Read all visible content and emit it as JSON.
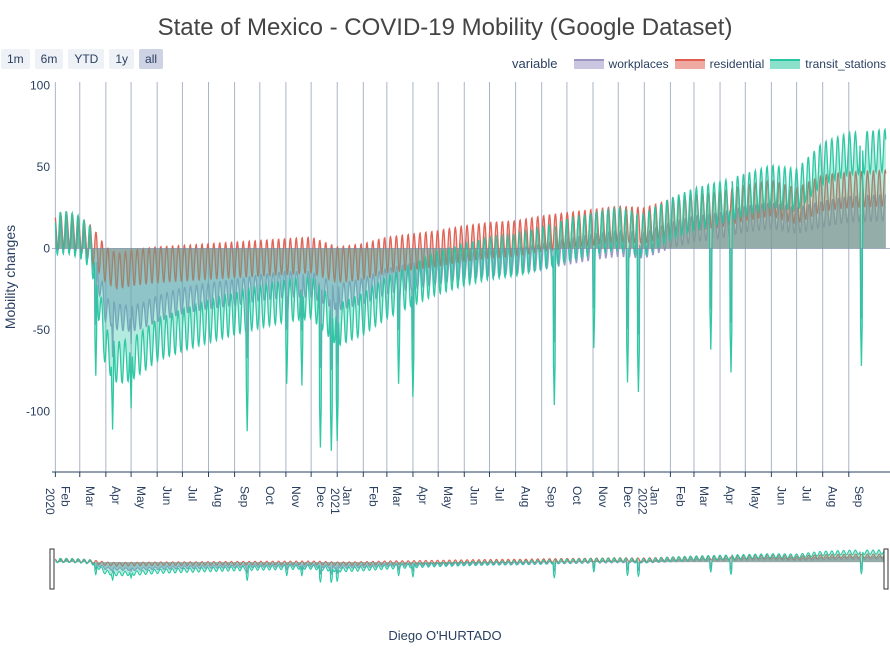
{
  "title": "State of Mexico - COVID-19 Mobility (Google Dataset)",
  "range_buttons": [
    "1m",
    "6m",
    "YTD",
    "1y",
    "all"
  ],
  "active_range": "all",
  "legend": {
    "title": "variable",
    "items": [
      {
        "name": "workplaces",
        "color": "#9b95c4"
      },
      {
        "name": "residential",
        "color": "#e05d4f"
      },
      {
        "name": "transit_stations",
        "color": "#26c6a0"
      }
    ]
  },
  "credit": "Diego O'HURTADO",
  "chart_data": {
    "type": "area",
    "title": "State of Mexico - COVID-19 Mobility (Google Dataset)",
    "xlabel": "",
    "ylabel": "Mobility changes",
    "ylim": [
      -137,
      102
    ],
    "yticks": [
      100,
      50,
      0,
      -50,
      -100
    ],
    "xlim": [
      "2020-01-28",
      "2022-10-20"
    ],
    "xticks": [
      {
        "label": "Feb",
        "date": "2020-02-01"
      },
      {
        "label": "Mar",
        "date": "2020-03-01"
      },
      {
        "label": "Apr",
        "date": "2020-04-01"
      },
      {
        "label": "May",
        "date": "2020-05-01"
      },
      {
        "label": "Jun",
        "date": "2020-06-01"
      },
      {
        "label": "Jul",
        "date": "2020-07-01"
      },
      {
        "label": "Aug",
        "date": "2020-08-01"
      },
      {
        "label": "Sep",
        "date": "2020-09-01"
      },
      {
        "label": "Oct",
        "date": "2020-10-01"
      },
      {
        "label": "Nov",
        "date": "2020-11-01"
      },
      {
        "label": "Dec",
        "date": "2020-12-01"
      },
      {
        "label": "Jan",
        "date": "2021-01-01"
      },
      {
        "label": "Feb",
        "date": "2021-02-01"
      },
      {
        "label": "Mar",
        "date": "2021-03-01"
      },
      {
        "label": "Apr",
        "date": "2021-04-01"
      },
      {
        "label": "May",
        "date": "2021-05-01"
      },
      {
        "label": "Jun",
        "date": "2021-06-01"
      },
      {
        "label": "Jul",
        "date": "2021-07-01"
      },
      {
        "label": "Aug",
        "date": "2021-08-01"
      },
      {
        "label": "Sep",
        "date": "2021-09-01"
      },
      {
        "label": "Oct",
        "date": "2021-10-01"
      },
      {
        "label": "Nov",
        "date": "2021-11-01"
      },
      {
        "label": "Dec",
        "date": "2021-12-01"
      },
      {
        "label": "Jan",
        "date": "2022-01-01"
      },
      {
        "label": "Feb",
        "date": "2022-02-01"
      },
      {
        "label": "Mar",
        "date": "2022-03-01"
      },
      {
        "label": "Apr",
        "date": "2022-04-01"
      },
      {
        "label": "May",
        "date": "2022-05-01"
      },
      {
        "label": "Jun",
        "date": "2022-06-01"
      },
      {
        "label": "Jul",
        "date": "2022-07-01"
      },
      {
        "label": "Aug",
        "date": "2022-08-01"
      },
      {
        "label": "Sep",
        "date": "2022-09-01"
      }
    ],
    "year_labels": [
      {
        "label": "2020",
        "date": "2020-01-28"
      },
      {
        "label": "2021",
        "date": "2021-01-01"
      },
      {
        "label": "2022",
        "date": "2022-01-01"
      }
    ],
    "series": [
      {
        "name": "workplaces",
        "color": "#9b95c4",
        "points": [
          [
            "2020-02-01",
            7
          ],
          [
            "2020-02-15",
            8
          ],
          [
            "2020-03-01",
            6
          ],
          [
            "2020-03-15",
            0
          ],
          [
            "2020-04-01",
            -38
          ],
          [
            "2020-04-15",
            -42
          ],
          [
            "2020-05-01",
            -43
          ],
          [
            "2020-05-15",
            -41
          ],
          [
            "2020-06-01",
            -37
          ],
          [
            "2020-07-01",
            -32
          ],
          [
            "2020-08-01",
            -29
          ],
          [
            "2020-09-01",
            -27
          ],
          [
            "2020-10-01",
            -24
          ],
          [
            "2020-11-01",
            -22
          ],
          [
            "2020-12-01",
            -22
          ],
          [
            "2021-01-01",
            -30
          ],
          [
            "2021-02-01",
            -26
          ],
          [
            "2021-03-01",
            -20
          ],
          [
            "2021-04-01",
            -17
          ],
          [
            "2021-05-01",
            -14
          ],
          [
            "2021-06-01",
            -11
          ],
          [
            "2021-07-01",
            -9
          ],
          [
            "2021-08-01",
            -8
          ],
          [
            "2021-09-01",
            -5
          ],
          [
            "2021-10-01",
            -2
          ],
          [
            "2021-11-01",
            1
          ],
          [
            "2021-12-01",
            3
          ],
          [
            "2022-01-01",
            2
          ],
          [
            "2022-02-01",
            8
          ],
          [
            "2022-03-01",
            12
          ],
          [
            "2022-04-01",
            14
          ],
          [
            "2022-05-01",
            18
          ],
          [
            "2022-06-01",
            20
          ],
          [
            "2022-07-01",
            17
          ],
          [
            "2022-08-01",
            21
          ],
          [
            "2022-09-01",
            24
          ],
          [
            "2022-10-15",
            25
          ]
        ]
      },
      {
        "name": "residential",
        "color": "#e05d4f",
        "points": [
          [
            "2020-02-01",
            10
          ],
          [
            "2020-02-15",
            11
          ],
          [
            "2020-03-01",
            8
          ],
          [
            "2020-03-15",
            3
          ],
          [
            "2020-04-01",
            -10
          ],
          [
            "2020-04-15",
            -14
          ],
          [
            "2020-05-01",
            -12
          ],
          [
            "2020-05-15",
            -11
          ],
          [
            "2020-06-01",
            -10
          ],
          [
            "2020-07-01",
            -9
          ],
          [
            "2020-08-01",
            -8
          ],
          [
            "2020-09-01",
            -7
          ],
          [
            "2020-10-01",
            -6
          ],
          [
            "2020-11-01",
            -5
          ],
          [
            "2020-12-01",
            -4
          ],
          [
            "2021-01-01",
            -10
          ],
          [
            "2021-02-01",
            -8
          ],
          [
            "2021-03-01",
            -4
          ],
          [
            "2021-04-01",
            -2
          ],
          [
            "2021-05-01",
            0
          ],
          [
            "2021-06-01",
            3
          ],
          [
            "2021-07-01",
            5
          ],
          [
            "2021-08-01",
            6
          ],
          [
            "2021-09-01",
            9
          ],
          [
            "2021-10-01",
            11
          ],
          [
            "2021-11-01",
            13
          ],
          [
            "2021-12-01",
            15
          ],
          [
            "2022-01-01",
            14
          ],
          [
            "2022-02-01",
            19
          ],
          [
            "2022-03-01",
            22
          ],
          [
            "2022-04-01",
            24
          ],
          [
            "2022-05-01",
            28
          ],
          [
            "2022-06-01",
            31
          ],
          [
            "2022-07-01",
            26
          ],
          [
            "2022-08-01",
            34
          ],
          [
            "2022-09-01",
            36
          ],
          [
            "2022-10-15",
            37
          ]
        ]
      },
      {
        "name": "transit_stations",
        "color": "#26c6a0",
        "points": [
          [
            "2020-02-01",
            9
          ],
          [
            "2020-02-15",
            10
          ],
          [
            "2020-03-01",
            7
          ],
          [
            "2020-03-15",
            0
          ],
          [
            "2020-04-01",
            -62
          ],
          [
            "2020-04-15",
            -70
          ],
          [
            "2020-05-01",
            -68
          ],
          [
            "2020-05-15",
            -63
          ],
          [
            "2020-06-01",
            -56
          ],
          [
            "2020-07-01",
            -50
          ],
          [
            "2020-08-01",
            -45
          ],
          [
            "2020-09-01",
            -40
          ],
          [
            "2020-10-01",
            -36
          ],
          [
            "2020-11-01",
            -32
          ],
          [
            "2020-12-01",
            -30
          ],
          [
            "2021-01-01",
            -47
          ],
          [
            "2021-02-01",
            -40
          ],
          [
            "2021-03-01",
            -30
          ],
          [
            "2021-04-01",
            -22
          ],
          [
            "2021-05-01",
            -15
          ],
          [
            "2021-06-01",
            -10
          ],
          [
            "2021-07-01",
            -6
          ],
          [
            "2021-08-01",
            -4
          ],
          [
            "2021-09-01",
            0
          ],
          [
            "2021-10-01",
            5
          ],
          [
            "2021-11-01",
            9
          ],
          [
            "2021-12-01",
            12
          ],
          [
            "2022-01-01",
            8
          ],
          [
            "2022-02-01",
            18
          ],
          [
            "2022-03-01",
            24
          ],
          [
            "2022-04-01",
            28
          ],
          [
            "2022-05-01",
            33
          ],
          [
            "2022-06-01",
            38
          ],
          [
            "2022-07-01",
            36
          ],
          [
            "2022-08-01",
            52
          ],
          [
            "2022-09-01",
            58
          ],
          [
            "2022-10-15",
            60
          ]
        ]
      }
    ],
    "dips": [
      {
        "date": "2020-03-20",
        "value": -78
      },
      {
        "date": "2020-04-09",
        "value": -111
      },
      {
        "date": "2020-05-01",
        "value": -98
      },
      {
        "date": "2020-09-16",
        "value": -112
      },
      {
        "date": "2020-11-02",
        "value": -83
      },
      {
        "date": "2020-11-20",
        "value": -84
      },
      {
        "date": "2020-12-12",
        "value": -122
      },
      {
        "date": "2020-12-25",
        "value": -124
      },
      {
        "date": "2021-01-01",
        "value": -118
      },
      {
        "date": "2021-03-15",
        "value": -83
      },
      {
        "date": "2021-04-01",
        "value": -91
      },
      {
        "date": "2021-09-16",
        "value": -96
      },
      {
        "date": "2021-11-02",
        "value": -61
      },
      {
        "date": "2021-12-12",
        "value": -82
      },
      {
        "date": "2021-12-25",
        "value": -88
      },
      {
        "date": "2022-03-21",
        "value": -62
      },
      {
        "date": "2022-04-14",
        "value": -76
      },
      {
        "date": "2022-09-16",
        "value": -72
      }
    ]
  }
}
